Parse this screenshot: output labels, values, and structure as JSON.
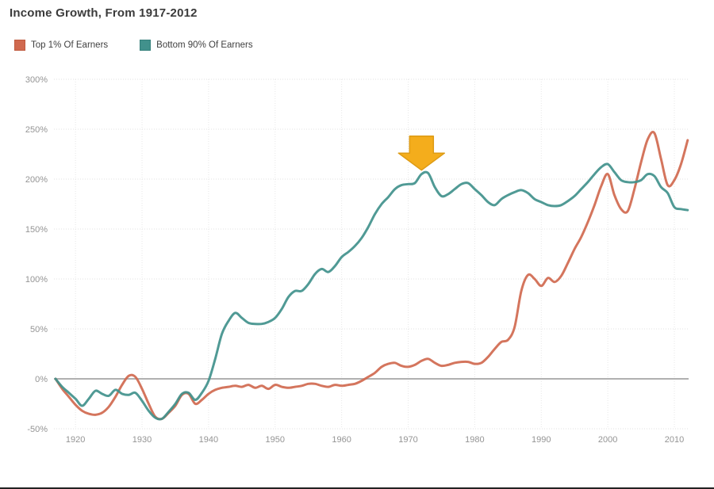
{
  "page": {
    "title": "Income Growth, From 1917-2012"
  },
  "legend": {
    "items": [
      {
        "label": "Top 1% Of Earners",
        "color": "#d0694f",
        "border": "#bf5a3f"
      },
      {
        "label": "Bottom 90% Of Earners",
        "color": "#41918c",
        "border": "#35807b"
      }
    ]
  },
  "chart_data": {
    "type": "line",
    "title": "Income Growth, From 1917-2012",
    "x": {
      "start_year": 1917,
      "end_year": 2012,
      "tick_years": [
        1920,
        1930,
        1940,
        1950,
        1960,
        1970,
        1980,
        1990,
        2000,
        2010
      ]
    },
    "y": {
      "unit": "%",
      "min": -50,
      "max": 300,
      "tick_values": [
        300,
        250,
        200,
        150,
        100,
        50,
        0,
        -50
      ],
      "zero_line": true
    },
    "grid": {
      "horizontal": true,
      "vertical": true
    },
    "legend_position": "top-left",
    "annotation": {
      "type": "down-arrow",
      "color": "#f4ad1c",
      "border": "#dd9b15",
      "at_year": 1972,
      "tip_percent": 209,
      "top_percent": 243
    },
    "series": [
      {
        "name": "Top 1% Of Earners",
        "color": "#d0694f",
        "values_percent_by_year": [
          0,
          -10,
          -18,
          -26,
          -32,
          -35,
          -36,
          -34,
          -28,
          -18,
          -6,
          3,
          2,
          -10,
          -25,
          -38,
          -40,
          -34,
          -27,
          -16,
          -15,
          -25,
          -21,
          -15,
          -11,
          -9,
          -8,
          -7,
          -8,
          -6,
          -9,
          -7,
          -10,
          -6,
          -8,
          -9,
          -8,
          -7,
          -5,
          -5,
          -7,
          -8,
          -6,
          -7,
          -6,
          -5,
          -2,
          2,
          6,
          12,
          15,
          16,
          13,
          12,
          14,
          18,
          20,
          16,
          13,
          14,
          16,
          17,
          17,
          15,
          16,
          22,
          30,
          37,
          39,
          52,
          88,
          104,
          100,
          93,
          101,
          97,
          103,
          116,
          130,
          142,
          157,
          174,
          193,
          205,
          184,
          170,
          168,
          190,
          217,
          240,
          246,
          220,
          194,
          199,
          215,
          239
        ]
      },
      {
        "name": "Bottom 90% Of Earners",
        "color": "#41918c",
        "values_percent_by_year": [
          0,
          -8,
          -14,
          -20,
          -27,
          -20,
          -12,
          -15,
          -17,
          -11,
          -15,
          -16,
          -14,
          -22,
          -32,
          -39,
          -40,
          -33,
          -25,
          -15,
          -14,
          -21,
          -14,
          -2,
          20,
          45,
          58,
          66,
          61,
          56,
          55,
          55,
          57,
          61,
          70,
          82,
          88,
          88,
          95,
          105,
          110,
          107,
          113,
          122,
          127,
          133,
          141,
          152,
          165,
          175,
          182,
          190,
          194,
          195,
          196,
          205,
          206,
          192,
          183,
          185,
          190,
          195,
          196,
          190,
          184,
          177,
          174,
          180,
          184,
          187,
          189,
          186,
          180,
          177,
          174,
          173,
          174,
          178,
          183,
          190,
          197,
          205,
          212,
          215,
          207,
          199,
          197,
          197,
          199,
          205,
          203,
          192,
          186,
          172,
          170,
          169
        ]
      }
    ]
  }
}
